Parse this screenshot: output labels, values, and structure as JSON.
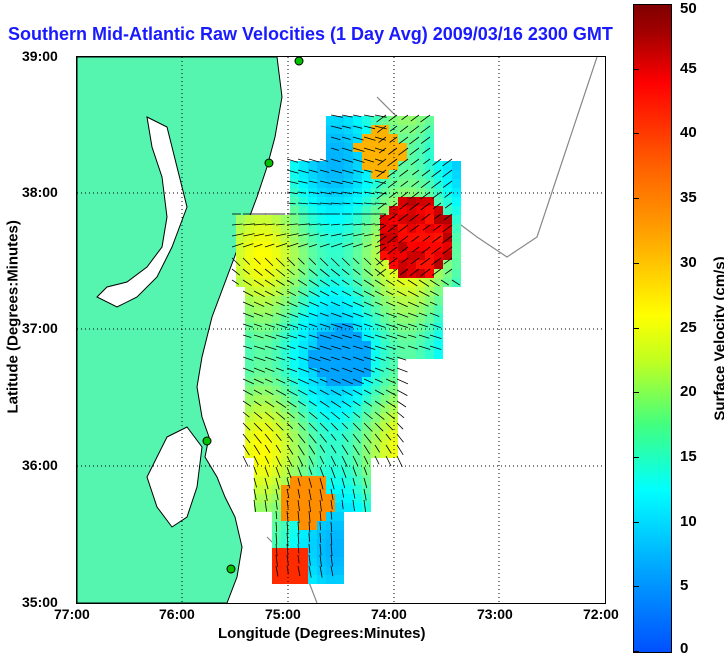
{
  "title": "Southern Mid-Atlantic Raw Velocities (1 Day Avg) 2009/03/16 2300 GMT",
  "axes": {
    "xlabel": "Longitude (Degrees:Minutes)",
    "ylabel": "Latitude (Degrees:Minutes)",
    "x_ticks": [
      "77:00",
      "76:00",
      "75:00",
      "74:00",
      "73:00",
      "72:00"
    ],
    "y_ticks": [
      "39:00",
      "38:00",
      "37:00",
      "36:00",
      "35:00"
    ]
  },
  "colorbar": {
    "label": "Surface Velocity (cm/s)",
    "ticks": [
      "50",
      "45",
      "40",
      "35",
      "30",
      "25",
      "20",
      "15",
      "10",
      "5",
      "0"
    ],
    "min": 0,
    "max": 50,
    "colors": [
      "#0000ff",
      "#00ffff",
      "#ffff00",
      "#ff8000",
      "#ff0000",
      "#800000"
    ]
  },
  "map": {
    "land_color": "#55f5b0",
    "lon_range": [
      -77,
      -72
    ],
    "lat_range": [
      35,
      39
    ],
    "grid": "dotted"
  }
}
